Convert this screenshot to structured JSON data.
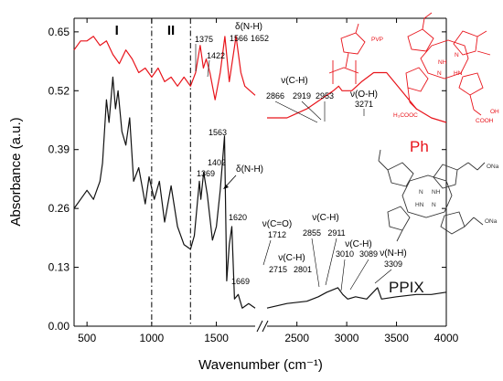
{
  "chart_data": {
    "type": "line",
    "xlabel": "Wavenumber (cm⁻¹)",
    "ylabel": "Absorbance (a.u.)",
    "ylim": [
      0,
      0.68
    ],
    "yticks": [
      0.0,
      0.13,
      0.26,
      0.39,
      0.52,
      0.65
    ],
    "ytick_labels": [
      "0.00",
      "0.13",
      "0.26",
      "0.39",
      "0.52",
      "0.65"
    ],
    "x_break": true,
    "x_segments": [
      {
        "range": [
          400,
          1800
        ],
        "ticks": [
          500,
          1000,
          1500
        ],
        "tick_labels": [
          "500",
          "1000",
          "1500"
        ]
      },
      {
        "range": [
          2200,
          4000
        ],
        "ticks": [
          2500,
          3000,
          3500,
          4000
        ],
        "tick_labels": [
          "2500",
          "3000",
          "3500",
          "4000"
        ]
      }
    ],
    "regions": [
      {
        "label": "I",
        "x": 730
      },
      {
        "label": "II",
        "x": 1150
      }
    ],
    "divider_lines": [
      1000,
      1300
    ],
    "series": [
      {
        "name": "Ph",
        "color": "#e8141b",
        "points_low": [
          [
            400,
            0.61
          ],
          [
            450,
            0.63
          ],
          [
            500,
            0.63
          ],
          [
            550,
            0.64
          ],
          [
            600,
            0.62
          ],
          [
            650,
            0.63
          ],
          [
            700,
            0.6
          ],
          [
            750,
            0.58
          ],
          [
            800,
            0.61
          ],
          [
            850,
            0.59
          ],
          [
            900,
            0.56
          ],
          [
            950,
            0.57
          ],
          [
            1000,
            0.55
          ],
          [
            1050,
            0.57
          ],
          [
            1100,
            0.54
          ],
          [
            1150,
            0.55
          ],
          [
            1200,
            0.53
          ],
          [
            1250,
            0.55
          ],
          [
            1300,
            0.53
          ],
          [
            1340,
            0.56
          ],
          [
            1375,
            0.62
          ],
          [
            1400,
            0.57
          ],
          [
            1422,
            0.59
          ],
          [
            1450,
            0.56
          ],
          [
            1490,
            0.5
          ],
          [
            1530,
            0.56
          ],
          [
            1566,
            0.64
          ],
          [
            1600,
            0.54
          ],
          [
            1652,
            0.64
          ],
          [
            1690,
            0.56
          ],
          [
            1720,
            0.53
          ],
          [
            1800,
            0.51
          ]
        ],
        "points_high": [
          [
            2200,
            0.46
          ],
          [
            2400,
            0.46
          ],
          [
            2600,
            0.48
          ],
          [
            2800,
            0.51
          ],
          [
            2866,
            0.52
          ],
          [
            2919,
            0.53
          ],
          [
            2953,
            0.52
          ],
          [
            3050,
            0.52
          ],
          [
            3150,
            0.54
          ],
          [
            3271,
            0.56
          ],
          [
            3400,
            0.56
          ],
          [
            3550,
            0.52
          ],
          [
            3700,
            0.48
          ],
          [
            3850,
            0.46
          ],
          [
            4000,
            0.45
          ]
        ]
      },
      {
        "name": "PPIX",
        "color": "#111111",
        "points_low": [
          [
            400,
            0.26
          ],
          [
            450,
            0.28
          ],
          [
            500,
            0.3
          ],
          [
            550,
            0.28
          ],
          [
            600,
            0.32
          ],
          [
            620,
            0.36
          ],
          [
            650,
            0.5
          ],
          [
            670,
            0.45
          ],
          [
            700,
            0.55
          ],
          [
            720,
            0.48
          ],
          [
            740,
            0.52
          ],
          [
            770,
            0.43
          ],
          [
            800,
            0.4
          ],
          [
            830,
            0.46
          ],
          [
            860,
            0.32
          ],
          [
            900,
            0.35
          ],
          [
            950,
            0.27
          ],
          [
            980,
            0.33
          ],
          [
            1020,
            0.28
          ],
          [
            1060,
            0.32
          ],
          [
            1100,
            0.23
          ],
          [
            1150,
            0.31
          ],
          [
            1200,
            0.22
          ],
          [
            1250,
            0.18
          ],
          [
            1300,
            0.17
          ],
          [
            1330,
            0.2
          ],
          [
            1369,
            0.32
          ],
          [
            1380,
            0.28
          ],
          [
            1402,
            0.34
          ],
          [
            1430,
            0.29
          ],
          [
            1470,
            0.19
          ],
          [
            1500,
            0.22
          ],
          [
            1530,
            0.3
          ],
          [
            1563,
            0.42
          ],
          [
            1580,
            0.1
          ],
          [
            1600,
            0.18
          ],
          [
            1620,
            0.22
          ],
          [
            1640,
            0.06
          ],
          [
            1669,
            0.07
          ],
          [
            1700,
            0.04
          ],
          [
            1750,
            0.05
          ],
          [
            1800,
            0.04
          ]
        ],
        "points_high": [
          [
            2200,
            0.04
          ],
          [
            2400,
            0.05
          ],
          [
            2600,
            0.055
          ],
          [
            2715,
            0.065
          ],
          [
            2801,
            0.075
          ],
          [
            2855,
            0.08
          ],
          [
            2911,
            0.085
          ],
          [
            2960,
            0.07
          ],
          [
            3010,
            0.06
          ],
          [
            3089,
            0.065
          ],
          [
            3200,
            0.06
          ],
          [
            3309,
            0.085
          ],
          [
            3350,
            0.06
          ],
          [
            3500,
            0.065
          ],
          [
            3700,
            0.07
          ],
          [
            3850,
            0.07
          ],
          [
            4000,
            0.075
          ]
        ]
      }
    ],
    "annotations": {
      "ph_low": [
        "1375",
        "1422",
        "1566",
        "1652",
        "δ(N-H)"
      ],
      "ph_high": [
        "ν(C-H)",
        "2866",
        "2919",
        "2953",
        "ν(O-H)",
        "3271"
      ],
      "ppix_low": [
        "1563",
        "1369",
        "1402",
        "δ(N-H)",
        "1620",
        "1669"
      ],
      "ppix_high": [
        "ν(C=O)",
        "1712",
        "ν(C-H)",
        "2715",
        "2801",
        "ν(C-H)",
        "2855",
        "2911",
        "ν(C-H)",
        "3010",
        "3089",
        "ν(N-H)",
        "3309"
      ]
    },
    "series_labels": [
      "Ph",
      "PPIX"
    ],
    "structure_labels": {
      "ph": [
        "PVP",
        "NH",
        "N",
        "N",
        "HN",
        "H₃COOC",
        "COOH",
        "OH"
      ],
      "ppix": [
        "N",
        "NH",
        "HN",
        "N",
        "ONa",
        "ONa"
      ]
    }
  }
}
